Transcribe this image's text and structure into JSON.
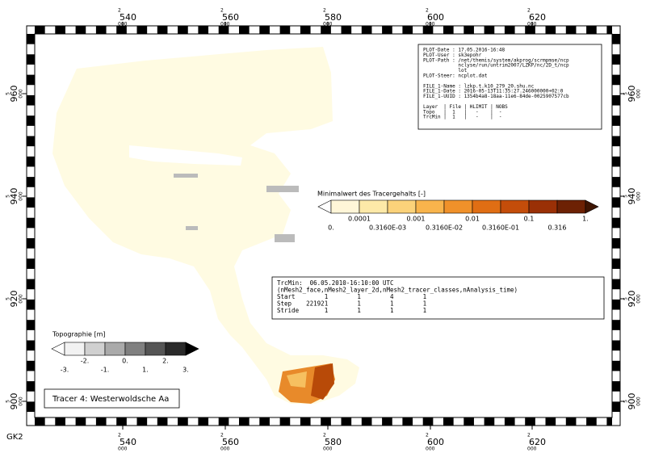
{
  "frame": {
    "x_labels": [
      {
        "prefix": "2",
        "main": "540",
        "suffix": "000"
      },
      {
        "prefix": "2",
        "main": "560",
        "suffix": "000"
      },
      {
        "prefix": "2",
        "main": "580",
        "suffix": "000"
      },
      {
        "prefix": "2",
        "main": "600",
        "suffix": "000"
      },
      {
        "prefix": "2",
        "main": "620",
        "suffix": "000"
      }
    ],
    "y_labels": [
      {
        "prefix": "5",
        "main": "960",
        "suffix": "000"
      },
      {
        "prefix": "5",
        "main": "940",
        "suffix": "000"
      },
      {
        "prefix": "5",
        "main": "920",
        "suffix": "000"
      },
      {
        "prefix": "5",
        "main": "900",
        "suffix": "000"
      }
    ],
    "crs": "GK2"
  },
  "info_box": {
    "lines": [
      "PLOT-Date : 17.05.2016-16:48",
      "PLOT-User : sk3epohr",
      "PLOT-Path : /net/themis/system/akprog/scrmpmse/ncp",
      "            nclyse/run/untrim2007/LZKP/nc/2D_t/ncp",
      "            lot",
      "PLOT-Steer: ncplot.dat",
      "",
      "FILE_1-Name : lzkp.t.k10_279_20.shu.nc",
      "FILE_1-Date : 2016-05-13T11:35:27.246000000+02:0",
      "FILE_1-UUID : 1354b4a8-18aa-11e6-84de-0025907577cb",
      "",
      "Layer  | File | HLIMIT | NOBS",
      "Topo   |  1   |   -    |  -",
      "TrcMin |  1   |   -    |  -"
    ]
  },
  "tracer_legend": {
    "title": "Minimalwert des Tracergehalts [-]",
    "labels": [
      "0.",
      "0.0001",
      "0.3160E-03",
      "0.001",
      "0.3160E-02",
      "0.01",
      "0.3160E-01",
      "0.1",
      "0.316",
      "1."
    ]
  },
  "query_box": {
    "lines": [
      "TrcMin:  06.05.2010-16:10:00 UTC",
      "(nMesh2_face,nMesh2_layer_2d,nMesh2_tracer_classes,nAnalysis_time)",
      "Start        1        1        4        1",
      "Step    221921        1        1        1",
      "Stride       1        1        1        1"
    ]
  },
  "topo_legend": {
    "title": "Topographie [m]",
    "labels": [
      "-3.",
      "-2.",
      "-1.",
      "0.",
      "1.",
      "2.",
      "3."
    ]
  },
  "tracer_name": "Tracer 4: Westerwoldsche Aa"
}
